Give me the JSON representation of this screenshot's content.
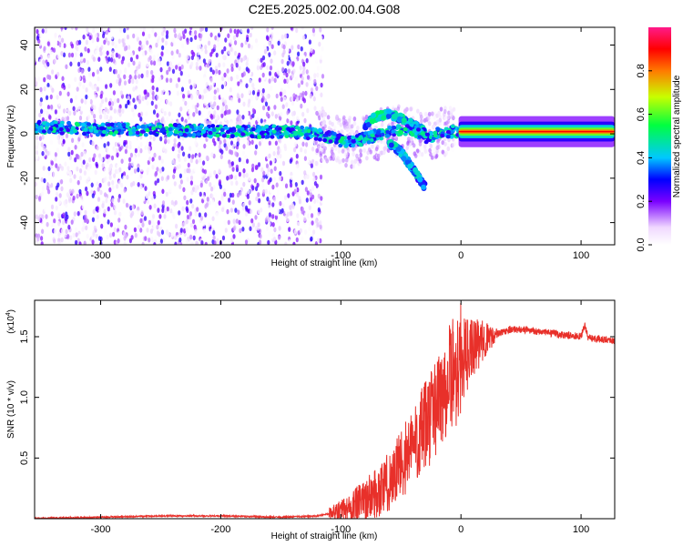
{
  "title": "C2E5.2025.002.00.04.G08",
  "colors": {
    "snr_line": "#e8302a",
    "ridge": "#ff2a00",
    "bg": "#ffffff"
  },
  "chart_data": [
    {
      "type": "heatmap",
      "xlabel": "Height of straight line (km)",
      "ylabel": "Frequency (Hz)",
      "xlim": [
        -355,
        128
      ],
      "ylim": [
        -50,
        48
      ],
      "x_ticks": [
        "-300",
        "-200",
        "-100",
        "0",
        "100"
      ],
      "y_ticks": [
        "40",
        "20",
        "0",
        "-20",
        "-40"
      ],
      "colorbar_label": "Normalized spectral amplitude",
      "colorbar_ticks": [
        "0.0",
        "0.2",
        "0.4",
        "0.6",
        "0.8"
      ],
      "colorbar_range": [
        0,
        1
      ],
      "colormap": "rainbow",
      "ridge": {
        "x": [
          -350,
          -300,
          -250,
          -200,
          -150,
          -120,
          -100,
          -90,
          -80,
          -60,
          -40,
          -30,
          -20,
          -10,
          0,
          50,
          100,
          128
        ],
        "y": [
          3,
          2,
          2,
          1,
          1,
          0,
          -3,
          -4,
          -2,
          1,
          2,
          -2,
          0,
          1,
          1,
          1,
          0,
          0
        ]
      },
      "upper_branch": {
        "x": [
          -80,
          -70,
          -60,
          -50,
          -40,
          -30
        ],
        "y": [
          4,
          8,
          9,
          7,
          4,
          1
        ]
      },
      "lower_branch": {
        "x": [
          -60,
          -50,
          -45,
          -40,
          -35,
          -30
        ],
        "y": [
          -4,
          -8,
          -12,
          -16,
          -20,
          -24
        ]
      }
    },
    {
      "type": "line",
      "xlabel": "Height of straight line (km)",
      "ylabel": "SNR (10 * v/v)",
      "y_multiplier": "(x10^4)",
      "y_multiplier_base": "(x10",
      "y_multiplier_exp": "4",
      "y_multiplier_close": ")",
      "xlim": [
        -355,
        128
      ],
      "ylim": [
        0,
        1.8
      ],
      "x_ticks": [
        "-300",
        "-200",
        "-100",
        "0",
        "100"
      ],
      "y_ticks": [
        "1.5",
        "1.0",
        "0.5"
      ],
      "series": [
        {
          "x": [
            -355,
            -300,
            -250,
            -200,
            -150,
            -120,
            -100,
            -80,
            -60,
            -50,
            -40,
            -30,
            -20,
            -10,
            0,
            10,
            20,
            30,
            40,
            50,
            60,
            80,
            100,
            103,
            106,
            128
          ],
          "y": [
            0.0,
            0.01,
            0.02,
            0.02,
            0.01,
            0.02,
            0.06,
            0.15,
            0.3,
            0.45,
            0.6,
            0.75,
            0.95,
            1.15,
            1.3,
            1.4,
            1.48,
            1.52,
            1.56,
            1.56,
            1.55,
            1.52,
            1.5,
            1.6,
            1.49,
            1.47
          ]
        }
      ]
    }
  ]
}
